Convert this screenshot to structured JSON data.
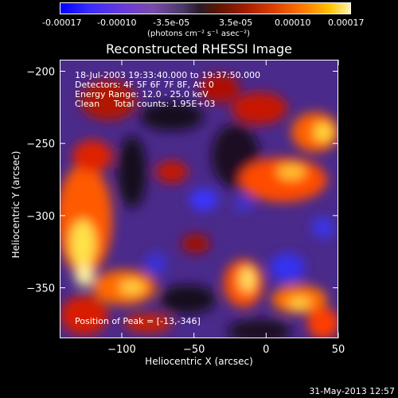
{
  "colorbar": {
    "tick_labels": [
      "-0.00017",
      "-0.00010",
      "-3.5e-05",
      "3.5e-05",
      "0.00010",
      "0.00017"
    ],
    "unit_label": "(photons cm⁻² s⁻¹ asec⁻²)"
  },
  "chart_data": {
    "type": "heatmap",
    "title": "Reconstructed RHESSI Image",
    "xlabel": "Heliocentric X (arcsec)",
    "ylabel": "Heliocentric Y (arcsec)",
    "xlim": [
      -143,
      50
    ],
    "ylim": [
      -385,
      -192
    ],
    "x_ticks": [
      -100,
      -50,
      0,
      50
    ],
    "y_ticks": [
      -200,
      -250,
      -300,
      -350
    ],
    "color_range": [
      -0.00017,
      0.00017
    ],
    "colormap": "blue-purple-black-red-yellow-white",
    "annotations": {
      "time_range": "18-Jul-2003 19:33:40.000 to 19:37:50.000",
      "detectors": "Detectors: 4F 5F 6F 7F 8F, Att 0",
      "energy_range": "Energy Range: 12.0 - 25.0 keV",
      "method_counts": "Clean     Total counts: 1.95E+03",
      "peak_position": "Position of Peak = [-13,-346]"
    }
  },
  "footer": {
    "timestamp": "31-May-2013 12:57"
  }
}
